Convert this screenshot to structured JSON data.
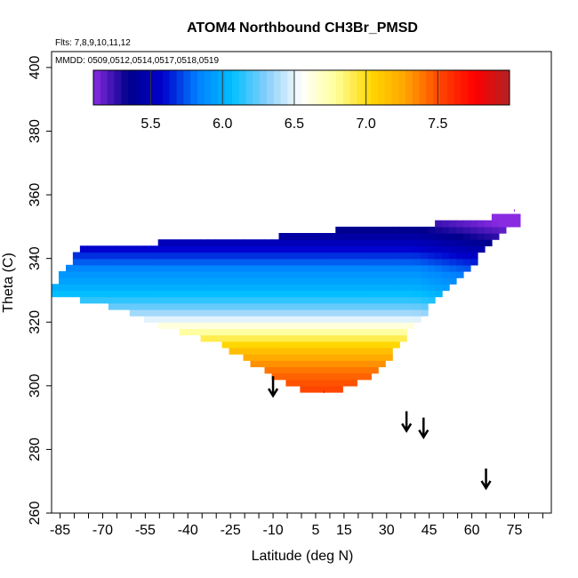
{
  "chart_data": {
    "type": "heatmap",
    "title": "ATOM4 Northbound CH3Br_PMSD",
    "flights_note": "Flts: 7,8,9,10,11,12",
    "dates_note": "MMDD: 0509,0512,0514,0517,0518,0519",
    "xlabel": "Latitude (deg N)",
    "ylabel": "Theta (C)",
    "xlim": [
      -88,
      88
    ],
    "ylim": [
      260,
      405
    ],
    "x_ticks": [
      -85,
      -70,
      -55,
      -40,
      -25,
      -10,
      5,
      15,
      30,
      45,
      60,
      75
    ],
    "y_ticks": [
      260,
      280,
      300,
      320,
      340,
      360,
      380,
      400
    ],
    "colorbar": {
      "range": [
        5.1,
        8.0
      ],
      "ticks": [
        5.5,
        6.0,
        6.5,
        7.0,
        7.5
      ],
      "colors": [
        "#8a2be2",
        "#00008b",
        "#0000cd",
        "#0080ff",
        "#00bfff",
        "#87cefa",
        "#ffffff",
        "#ffff99",
        "#ffd700",
        "#ffa500",
        "#ff4500",
        "#ff0000",
        "#b22222"
      ]
    },
    "field": {
      "lat_edges": [
        -88,
        -78,
        -62,
        -50,
        -40,
        -28,
        -18,
        -8,
        2,
        12,
        22,
        32,
        40,
        48,
        58,
        66,
        76
      ],
      "theta_top": [
        331,
        343,
        344,
        345,
        345,
        346,
        346,
        347,
        348,
        349,
        349,
        350,
        350,
        351,
        352,
        353,
        353
      ],
      "theta_bottom": [
        329,
        327,
        324,
        319,
        316,
        313,
        307,
        302,
        298,
        298,
        302,
        310,
        320,
        327,
        336,
        344,
        351
      ],
      "upper_value": 5.8,
      "lower_value": 7.6,
      "gradient_center_theta": 318
    },
    "arrows": [
      {
        "lat": -10,
        "theta": 303
      },
      {
        "lat": 37,
        "theta": 292
      },
      {
        "lat": 43,
        "theta": 290
      },
      {
        "lat": 65,
        "theta": 274
      }
    ],
    "edge_markers": [
      {
        "label": "'",
        "lat": 75,
        "theta": 353,
        "color": "#8a2be2"
      },
      {
        "label": "'",
        "lat": 8,
        "theta": 296,
        "color": "#ff0000"
      }
    ]
  }
}
